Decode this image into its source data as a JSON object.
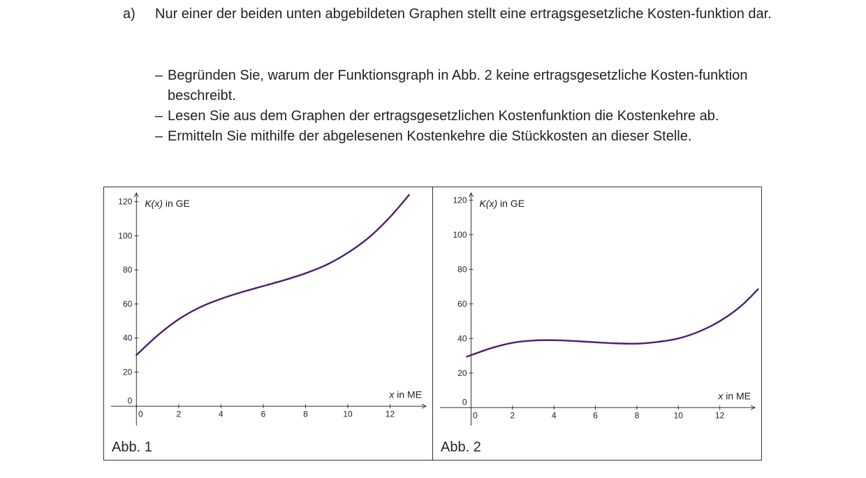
{
  "task": {
    "label": "a)",
    "intro": "Nur einer der beiden unten abgebildeten Graphen stellt eine ertragsgesetzliche Kosten-funktion dar.",
    "bullets": [
      "Begründen Sie, warum der Funktionsgraph in Abb. 2 keine ertragsgesetzliche Kosten-funktion beschreibt.",
      "Lesen Sie aus dem Graphen der ertragsgesetzlichen Kostenfunktion die Kostenkehre ab.",
      "Ermitteln Sie mithilfe der abgelesenen Kostenkehre die Stückkosten an dieser Stelle."
    ],
    "dash": "–"
  },
  "chart_data": [
    {
      "type": "line",
      "caption": "Abb. 1",
      "ylabel_italic": "K(x)",
      "ylabel_rest": " in GE",
      "xlabel_italic": "x",
      "xlabel_rest": "  in ME",
      "xlim": [
        -1.2,
        13.9
      ],
      "ylim": [
        -13,
        126
      ],
      "x_ticks": [
        0,
        2,
        4,
        6,
        8,
        10,
        12
      ],
      "y_ticks": [
        0,
        20,
        40,
        60,
        80,
        100,
        120
      ],
      "line_color": "#4b1f6f",
      "series": [
        {
          "x": [
            0,
            1,
            2,
            3,
            4,
            5,
            6,
            7,
            8,
            9,
            10,
            11,
            12,
            12.9
          ],
          "values": [
            30,
            41.5,
            51,
            58,
            63,
            67,
            70.5,
            74,
            78,
            83,
            90,
            99,
            111,
            124
          ]
        }
      ]
    },
    {
      "type": "line",
      "caption": "Abb. 2",
      "ylabel_italic": "K(x)",
      "ylabel_rest": " in GE",
      "xlabel_italic": "x",
      "xlabel_rest": "  in ME",
      "xlim": [
        -1.5,
        13.9
      ],
      "ylim": [
        -12,
        125
      ],
      "x_ticks": [
        0,
        2,
        4,
        6,
        8,
        10,
        12
      ],
      "y_ticks": [
        0,
        20,
        40,
        60,
        80,
        100,
        120
      ],
      "line_color": "#4b1f6f",
      "series": [
        {
          "x": [
            -0.2,
            1,
            2,
            3,
            4,
            5,
            6,
            7,
            8,
            9,
            10,
            11,
            12,
            13,
            13.85
          ],
          "values": [
            29.5,
            34.5,
            37.5,
            38.8,
            39,
            38.5,
            37.8,
            37.2,
            37,
            38,
            40,
            44,
            50,
            58.5,
            68.5
          ]
        }
      ]
    }
  ]
}
